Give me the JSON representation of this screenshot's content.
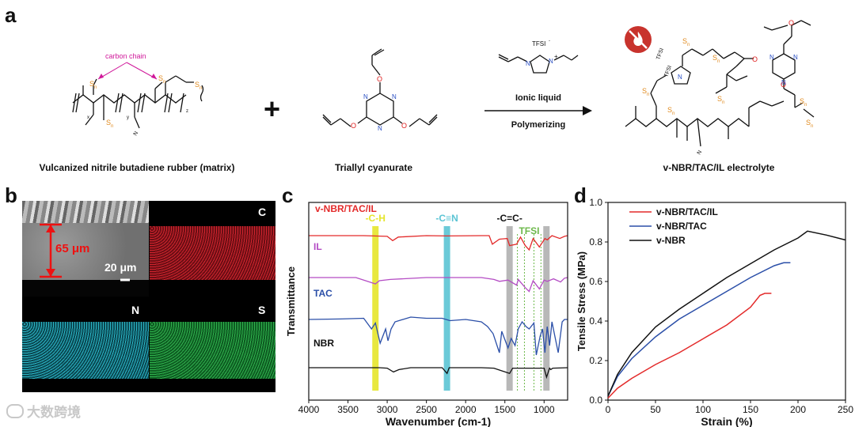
{
  "panels": {
    "a": "a",
    "b": "b",
    "c": "c",
    "d": "d"
  },
  "panel_a": {
    "matrix_caption": "Vulcanized nitrile butadiene rubber (matrix)",
    "tac_caption": "Triallyl cyanurate",
    "product_caption": "v-NBR/TAC/IL electrolyte",
    "carbon_chain_label": "carbon chain",
    "arrow_top": "Ionic liquid",
    "arrow_bottom": "Polymerizing",
    "plus": "+",
    "tfsi": "TFSI",
    "sulfur": "S",
    "subscript_n": "n",
    "oxygen": "O",
    "nitrogen": "N",
    "nitrogen_plus": "N",
    "charge_plus": "+",
    "charge_minus": "-",
    "nitrile": "N",
    "x_sub": "x",
    "y_sub": "y",
    "z_sub": "z"
  },
  "panel_b": {
    "thickness_label": "65 μm",
    "scale_label": "20 μm",
    "maps": [
      "C",
      "N",
      "S"
    ],
    "colors": {
      "C": "#c0202a",
      "N": "#22a7b6",
      "S": "#1f9a3a"
    }
  },
  "chart_data": [
    {
      "type": "line",
      "title": "",
      "xlabel": "Wavenumber (cm-1)",
      "ylabel": "Transmittance",
      "xlim": [
        4000,
        700
      ],
      "x_ticks": [
        4000,
        3500,
        3000,
        2500,
        2000,
        1500,
        1000
      ],
      "series": [
        {
          "name": "v-NBR/TAC/IL",
          "color": "#e32a2a",
          "offset_rank": 0,
          "points": [
            [
              4000,
              0.0
            ],
            [
              3300,
              0.0
            ],
            [
              3000,
              -0.05
            ],
            [
              2930,
              -0.35
            ],
            [
              2860,
              -0.1
            ],
            [
              2500,
              0
            ],
            [
              2238,
              -0.02
            ],
            [
              1800,
              0
            ],
            [
              1700,
              0
            ],
            [
              1660,
              -0.6
            ],
            [
              1570,
              -0.25
            ],
            [
              1470,
              -0.2
            ],
            [
              1440,
              -0.7
            ],
            [
              1350,
              -0.6
            ],
            [
              1300,
              -0.1
            ],
            [
              1240,
              -0.7
            ],
            [
              1190,
              -1.0
            ],
            [
              1140,
              -0.2
            ],
            [
              1060,
              -0.8
            ],
            [
              990,
              -0.2
            ],
            [
              960,
              -0.3
            ],
            [
              900,
              0
            ],
            [
              800,
              -0.2
            ],
            [
              740,
              -0.05
            ],
            [
              700,
              0
            ]
          ]
        },
        {
          "name": "IL",
          "color": "#b44cc4",
          "offset_rank": 1,
          "points": [
            [
              4000,
              0
            ],
            [
              3400,
              0
            ],
            [
              3150,
              -0.5
            ],
            [
              3100,
              -0.25
            ],
            [
              2960,
              -0.15
            ],
            [
              2500,
              0
            ],
            [
              1800,
              0
            ],
            [
              1640,
              -0.15
            ],
            [
              1570,
              -0.3
            ],
            [
              1460,
              -0.2
            ],
            [
              1350,
              -0.6
            ],
            [
              1330,
              -0.15
            ],
            [
              1240,
              -0.8
            ],
            [
              1190,
              -1.1
            ],
            [
              1140,
              -0.25
            ],
            [
              1060,
              -0.9
            ],
            [
              1000,
              -0.2
            ],
            [
              960,
              -0.3
            ],
            [
              880,
              -0.1
            ],
            [
              790,
              -0.35
            ],
            [
              740,
              -0.05
            ],
            [
              700,
              0
            ]
          ]
        },
        {
          "name": "TAC",
          "color": "#2b4fa8",
          "offset_rank": 2,
          "points": [
            [
              4000,
              0
            ],
            [
              3600,
              0.02
            ],
            [
              3300,
              0.05
            ],
            [
              3200,
              -0.4
            ],
            [
              3150,
              -0.15
            ],
            [
              3090,
              -1.0
            ],
            [
              3020,
              -0.4
            ],
            [
              2990,
              -0.9
            ],
            [
              2950,
              -0.4
            ],
            [
              2900,
              -0.1
            ],
            [
              2700,
              0.1
            ],
            [
              2500,
              0.05
            ],
            [
              2300,
              0.05
            ],
            [
              2200,
              -0.05
            ],
            [
              2000,
              0
            ],
            [
              1800,
              -0.1
            ],
            [
              1720,
              -0.3
            ],
            [
              1650,
              -0.6
            ],
            [
              1570,
              -1.4
            ],
            [
              1540,
              -0.5
            ],
            [
              1460,
              -1.2
            ],
            [
              1420,
              -0.8
            ],
            [
              1370,
              -1.1
            ],
            [
              1330,
              -0.4
            ],
            [
              1280,
              -0.1
            ],
            [
              1230,
              -0.3
            ],
            [
              1190,
              -0.4
            ],
            [
              1130,
              -0.15
            ],
            [
              1100,
              -1.5
            ],
            [
              1050,
              -0.7
            ],
            [
              1020,
              -0.4
            ],
            [
              990,
              -1.4
            ],
            [
              960,
              -0.3
            ],
            [
              930,
              -1.1
            ],
            [
              900,
              -0.1
            ],
            [
              820,
              -1.4
            ],
            [
              770,
              -0.1
            ],
            [
              740,
              0
            ],
            [
              700,
              0
            ]
          ]
        },
        {
          "name": "NBR",
          "color": "#111111",
          "offset_rank": 3,
          "points": [
            [
              4000,
              0
            ],
            [
              3100,
              0
            ],
            [
              3000,
              -0.05
            ],
            [
              2920,
              -0.45
            ],
            [
              2850,
              -0.2
            ],
            [
              2700,
              0
            ],
            [
              2300,
              0
            ],
            [
              2237,
              -0.6
            ],
            [
              2210,
              0
            ],
            [
              1800,
              0
            ],
            [
              1640,
              -0.05
            ],
            [
              1440,
              -0.6
            ],
            [
              1400,
              -0.05
            ],
            [
              1000,
              -0.05
            ],
            [
              968,
              -1.0
            ],
            [
              930,
              -0.05
            ],
            [
              915,
              -0.2
            ],
            [
              890,
              -0.05
            ],
            [
              700,
              0
            ]
          ]
        }
      ],
      "annotations": [
        {
          "text": "-C-H",
          "center": 3150,
          "color": "#e5e52a"
        },
        {
          "text": "-C≡N",
          "center": 2238,
          "color": "#5bc4d4"
        },
        {
          "text": "-C=C-",
          "center": 1440,
          "color": "#b0b0b0"
        },
        {
          "text": "-C=C-",
          "center": 970,
          "color": "#b0b0b0"
        },
        {
          "text": "TFSI",
          "range": [
            1340,
            1040
          ],
          "color": "#6db84b"
        }
      ]
    },
    {
      "type": "line",
      "title": "",
      "xlabel": "Strain (%)",
      "ylabel": "Tensile Stress (MPa)",
      "xlim": [
        0,
        250
      ],
      "ylim": [
        0,
        1.0
      ],
      "x_ticks": [
        0,
        50,
        100,
        150,
        200,
        250
      ],
      "y_ticks": [
        0.0,
        0.2,
        0.4,
        0.6,
        0.8,
        1.0
      ],
      "legend_position": "top-left",
      "series": [
        {
          "name": "v-NBR/TAC/IL",
          "color": "#e32a2a",
          "x": [
            0,
            10,
            25,
            50,
            75,
            100,
            125,
            150,
            160,
            165,
            172
          ],
          "y": [
            0.01,
            0.06,
            0.11,
            0.18,
            0.24,
            0.31,
            0.38,
            0.47,
            0.53,
            0.54,
            0.54
          ]
        },
        {
          "name": "v-NBR/TAC",
          "color": "#2b4fa8",
          "x": [
            0,
            10,
            25,
            50,
            75,
            100,
            125,
            150,
            175,
            185,
            192
          ],
          "y": [
            0.02,
            0.12,
            0.21,
            0.32,
            0.41,
            0.48,
            0.55,
            0.62,
            0.68,
            0.695,
            0.695
          ]
        },
        {
          "name": "v-NBR",
          "color": "#111111",
          "x": [
            0,
            10,
            25,
            50,
            75,
            100,
            125,
            150,
            175,
            200,
            210,
            230,
            250
          ],
          "y": [
            0.02,
            0.13,
            0.24,
            0.37,
            0.46,
            0.54,
            0.62,
            0.69,
            0.76,
            0.82,
            0.855,
            0.835,
            0.81
          ]
        }
      ]
    }
  ],
  "watermark": "大数跨境"
}
